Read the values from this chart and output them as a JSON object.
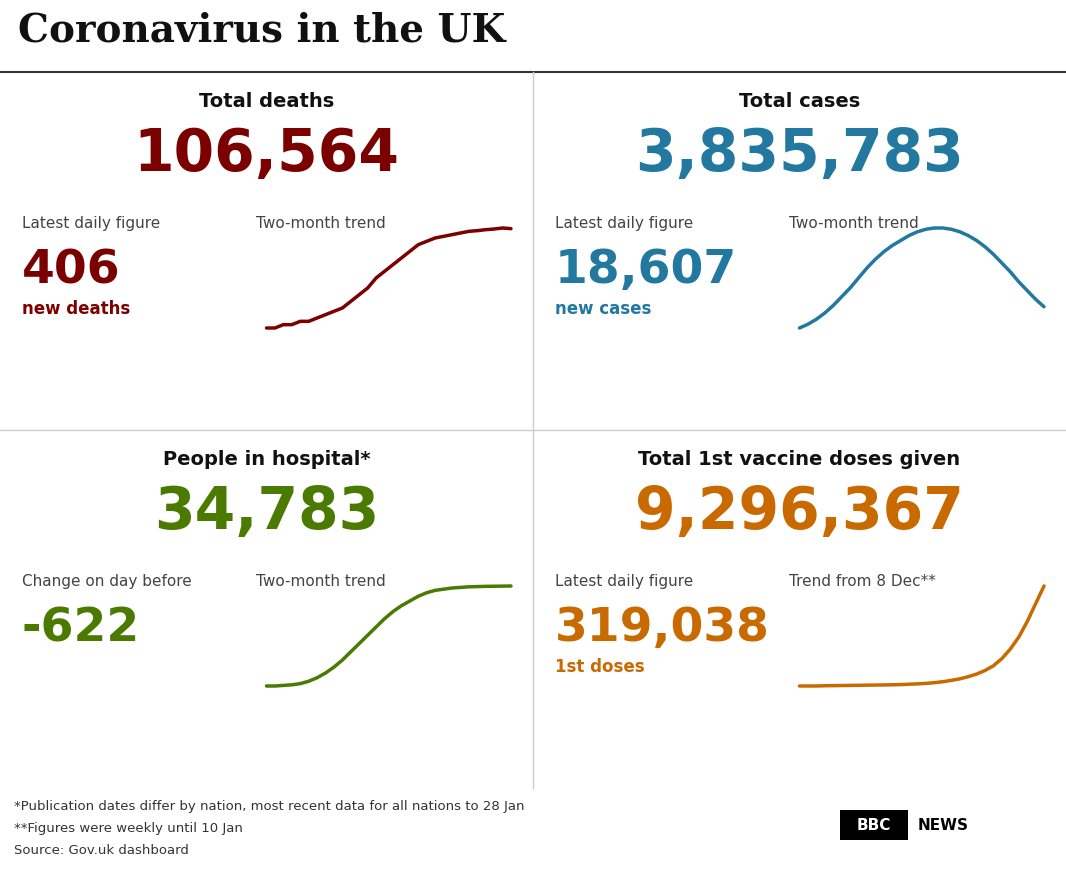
{
  "title": "Coronavirus in the UK",
  "bg_color": "#ffffff",
  "title_color": "#111111",
  "quadrants": [
    {
      "id": "top_left",
      "section_title": "Total deaths",
      "big_number": "106,564",
      "big_number_color": "#7b0000",
      "label1": "Latest daily figure",
      "label2": "Two-month trend",
      "small_number": "406",
      "small_label": "new deaths",
      "small_color": "#7b0000",
      "trend_color": "#7b0000",
      "trend_data": [
        2,
        2,
        2.1,
        2.1,
        2.2,
        2.2,
        2.3,
        2.4,
        2.5,
        2.6,
        2.8,
        3.0,
        3.2,
        3.5,
        3.7,
        3.9,
        4.1,
        4.3,
        4.5,
        4.6,
        4.7,
        4.75,
        4.8,
        4.85,
        4.9,
        4.92,
        4.95,
        4.97,
        5.0,
        4.98
      ]
    },
    {
      "id": "top_right",
      "section_title": "Total cases",
      "big_number": "3,835,783",
      "big_number_color": "#2378a0",
      "label1": "Latest daily figure",
      "label2": "Two-month trend",
      "small_number": "18,607",
      "small_label": "new cases",
      "small_color": "#2378a0",
      "trend_color": "#2378a0",
      "trend_data": [
        1,
        1.3,
        1.7,
        2.2,
        2.8,
        3.5,
        4.2,
        5.0,
        5.8,
        6.5,
        7.1,
        7.6,
        8.0,
        8.4,
        8.7,
        8.9,
        9.0,
        9.0,
        8.9,
        8.7,
        8.4,
        8.0,
        7.5,
        6.9,
        6.2,
        5.5,
        4.7,
        4.0,
        3.3,
        2.7
      ]
    },
    {
      "id": "bottom_left",
      "section_title": "People in hospital*",
      "big_number": "34,783",
      "big_number_color": "#4a7a00",
      "label1": "Change on day before",
      "label2": "Two-month trend",
      "small_number": "-622",
      "small_label": "",
      "small_color": "#4a7a00",
      "trend_color": "#4a7a00",
      "trend_data": [
        1,
        1,
        1.05,
        1.1,
        1.2,
        1.4,
        1.7,
        2.1,
        2.6,
        3.2,
        3.9,
        4.6,
        5.3,
        6.0,
        6.7,
        7.3,
        7.8,
        8.2,
        8.6,
        8.9,
        9.1,
        9.2,
        9.3,
        9.35,
        9.4,
        9.42,
        9.44,
        9.45,
        9.46,
        9.47
      ]
    },
    {
      "id": "bottom_right",
      "section_title": "Total 1st vaccine doses given",
      "big_number": "9,296,367",
      "big_number_color": "#c86a00",
      "label1": "Latest daily figure",
      "label2": "Trend from 8 Dec**",
      "small_number": "319,038",
      "small_label": "1st doses",
      "small_color": "#c86a00",
      "trend_color": "#c86a00",
      "trend_data": [
        0.1,
        0.1,
        0.1,
        0.12,
        0.13,
        0.14,
        0.15,
        0.16,
        0.17,
        0.18,
        0.19,
        0.2,
        0.22,
        0.25,
        0.28,
        0.32,
        0.38,
        0.46,
        0.57,
        0.7,
        0.88,
        1.1,
        1.4,
        1.8,
        2.4,
        3.2,
        4.2,
        5.5,
        7.0,
        8.5
      ]
    }
  ],
  "footnotes": [
    "*Publication dates differ by nation, most recent data for all nations to 28 Jan",
    "**Figures were weekly until 10 Jan",
    "Source: Gov.uk dashboard"
  ],
  "footnote_color": "#333333"
}
